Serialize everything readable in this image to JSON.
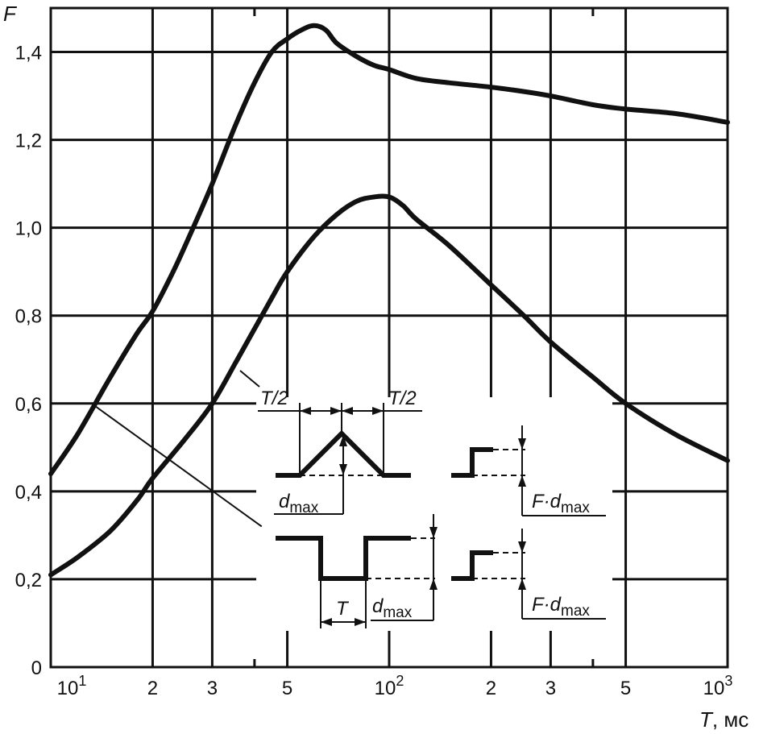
{
  "chart_data": {
    "type": "line",
    "x_scale": "log",
    "xlim": [
      10,
      1000
    ],
    "ylim": [
      0,
      1.5
    ],
    "grid": true,
    "ylabel": "F",
    "xlabel": "T",
    "xlabel_unit": ", мс",
    "y_ticks": [
      {
        "value": 0,
        "label": "0"
      },
      {
        "value": 0.2,
        "label": "0,2"
      },
      {
        "value": 0.4,
        "label": "0,4"
      },
      {
        "value": 0.6,
        "label": "0,6"
      },
      {
        "value": 0.8,
        "label": "0,8"
      },
      {
        "value": 1.0,
        "label": "1,0"
      },
      {
        "value": 1.2,
        "label": "1,2"
      },
      {
        "value": 1.4,
        "label": "1,4"
      }
    ],
    "x_ticks": [
      {
        "value": 10,
        "label": "10",
        "sup": "1"
      },
      {
        "value": 20,
        "label": "2"
      },
      {
        "value": 30,
        "label": "3"
      },
      {
        "value": 50,
        "label": "5"
      },
      {
        "value": 100,
        "label": "10",
        "sup": "2"
      },
      {
        "value": 200,
        "label": "2"
      },
      {
        "value": 300,
        "label": "3"
      },
      {
        "value": 500,
        "label": "5"
      },
      {
        "value": 1000,
        "label": "10",
        "sup": "3"
      }
    ],
    "series": [
      {
        "id": "triangular-pulse-curve",
        "x": [
          10,
          12,
          15,
          18,
          20,
          23,
          26,
          30,
          35,
          40,
          45,
          50,
          55,
          60,
          65,
          70,
          80,
          90,
          100,
          120,
          150,
          200,
          250,
          300,
          400,
          500,
          700,
          1000
        ],
        "y": [
          0.44,
          0.53,
          0.66,
          0.76,
          0.81,
          0.9,
          0.99,
          1.1,
          1.23,
          1.33,
          1.4,
          1.43,
          1.45,
          1.46,
          1.45,
          1.42,
          1.39,
          1.37,
          1.36,
          1.34,
          1.33,
          1.32,
          1.31,
          1.3,
          1.28,
          1.27,
          1.26,
          1.24
        ]
      },
      {
        "id": "rectangular-pulse-curve",
        "x": [
          10,
          12,
          15,
          18,
          20,
          25,
          30,
          35,
          40,
          45,
          50,
          60,
          70,
          80,
          90,
          100,
          110,
          120,
          150,
          200,
          250,
          300,
          400,
          500,
          700,
          1000
        ],
        "y": [
          0.21,
          0.25,
          0.31,
          0.38,
          0.43,
          0.52,
          0.6,
          0.69,
          0.77,
          0.84,
          0.9,
          0.98,
          1.03,
          1.06,
          1.07,
          1.07,
          1.05,
          1.02,
          0.96,
          0.87,
          0.8,
          0.74,
          0.66,
          0.6,
          0.53,
          0.47
        ]
      }
    ],
    "leader_lines": [
      {
        "from": {
          "x": 13.2,
          "y": 0.6
        },
        "to": {
          "x": 42,
          "y": 0.32
        }
      }
    ]
  },
  "diagrams": {
    "half_period_left": "T/2",
    "half_period_right": "T/2",
    "d_symbol": "d",
    "d_subscript": "max",
    "f_symbol": "F",
    "dot": "·",
    "period_symbol": "T"
  }
}
